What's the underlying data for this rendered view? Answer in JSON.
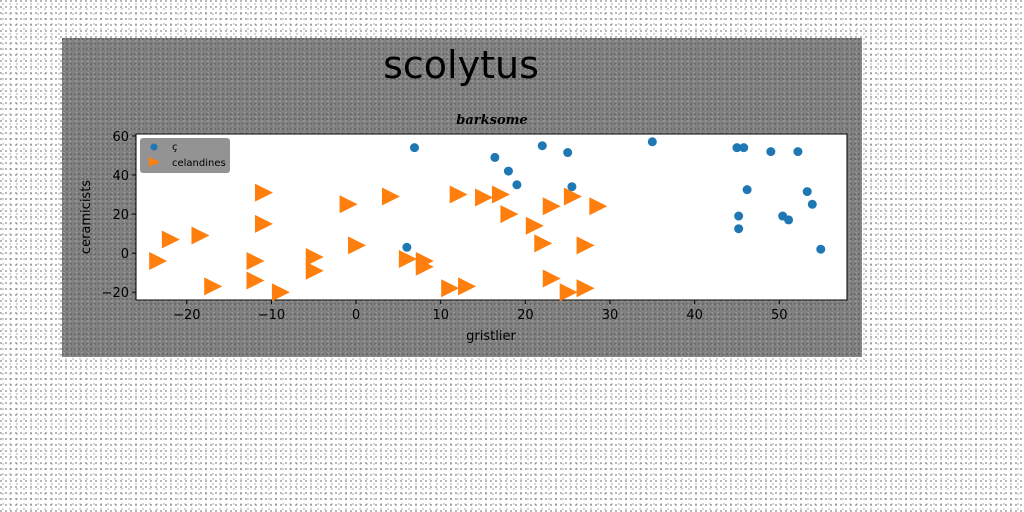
{
  "chart_data": {
    "type": "scatter",
    "suptitle": "scolytus",
    "title": "barksome",
    "xlabel": "gristlier",
    "ylabel": "ceramicists",
    "xlim": [
      -26,
      58
    ],
    "ylim": [
      -24,
      61
    ],
    "xticks": [
      -20,
      -10,
      0,
      10,
      20,
      30,
      40,
      50
    ],
    "yticks": [
      -20,
      0,
      20,
      40,
      60
    ],
    "grid": false,
    "legend_position": "top-left",
    "series": [
      {
        "name": "ç",
        "marker": "circle",
        "color": "#1f77b4",
        "points": [
          [
            6.9,
            54
          ],
          [
            16.4,
            49
          ],
          [
            18.0,
            42
          ],
          [
            19.0,
            35
          ],
          [
            22.0,
            55
          ],
          [
            25.0,
            51.5
          ],
          [
            25.5,
            34
          ],
          [
            35.0,
            57
          ],
          [
            45.0,
            54
          ],
          [
            45.8,
            54
          ],
          [
            49.0,
            52
          ],
          [
            52.2,
            52
          ],
          [
            46.2,
            32.5
          ],
          [
            53.3,
            31.5
          ],
          [
            53.9,
            25
          ],
          [
            45.2,
            19
          ],
          [
            50.4,
            19
          ],
          [
            51.1,
            17
          ],
          [
            45.2,
            12.5
          ],
          [
            54.9,
            2
          ],
          [
            6.0,
            3
          ]
        ]
      },
      {
        "name": "celandines",
        "marker": "triangle-right",
        "color": "#ff7f0e",
        "points": [
          [
            -22,
            7
          ],
          [
            -18.5,
            9
          ],
          [
            -23.5,
            -4
          ],
          [
            -17,
            -17
          ],
          [
            -11,
            31
          ],
          [
            -11,
            15
          ],
          [
            -12,
            -4
          ],
          [
            -12,
            -14
          ],
          [
            -9,
            -20
          ],
          [
            -5,
            -2
          ],
          [
            -5,
            -9
          ],
          [
            -1,
            25
          ],
          [
            0,
            4
          ],
          [
            4,
            29
          ],
          [
            6,
            -3
          ],
          [
            8,
            -4
          ],
          [
            8,
            -7
          ],
          [
            11,
            -18
          ],
          [
            12,
            30
          ],
          [
            13,
            -17
          ],
          [
            15,
            28.5
          ],
          [
            17,
            30
          ],
          [
            18,
            20
          ],
          [
            21,
            14
          ],
          [
            22,
            5
          ],
          [
            23,
            24
          ],
          [
            23,
            -13
          ],
          [
            25.5,
            29
          ],
          [
            25,
            -20
          ],
          [
            27,
            -18
          ],
          [
            27,
            4
          ],
          [
            28.5,
            24
          ]
        ]
      }
    ]
  }
}
